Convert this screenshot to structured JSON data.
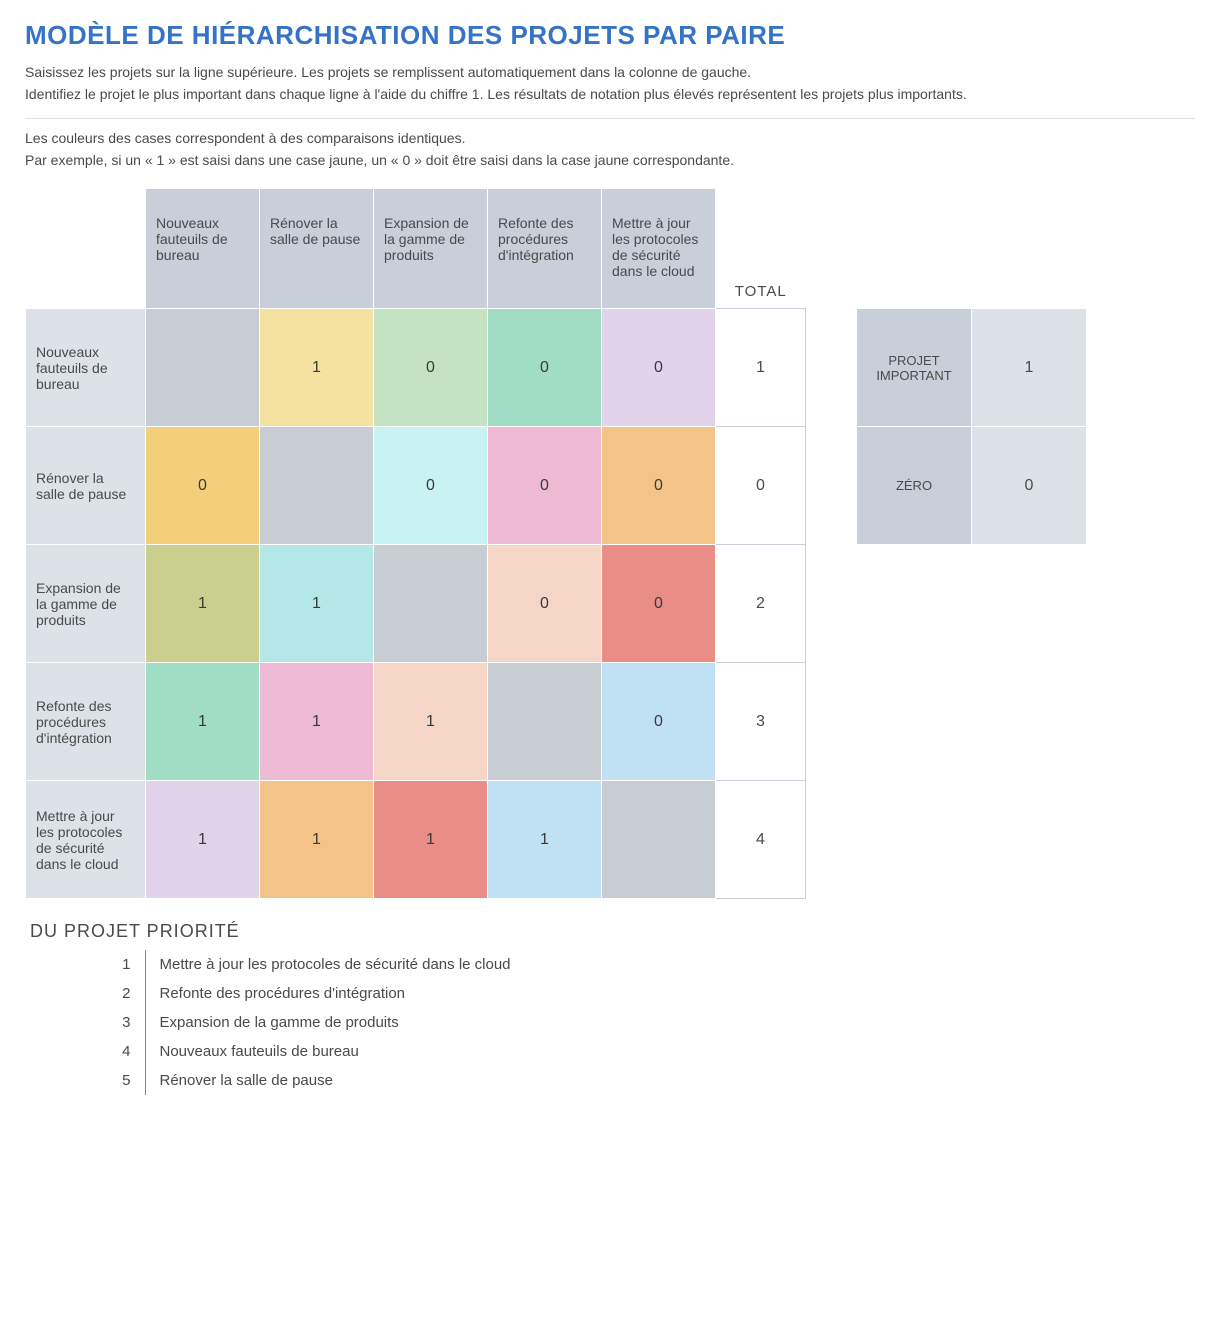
{
  "title": "MODÈLE DE HIÉRARCHISATION DES PROJETS PAR PAIRE",
  "intro": {
    "line1": "Saisissez les projets sur la ligne supérieure. Les projets se remplissent automatiquement dans la colonne de gauche.",
    "line2": "Identifiez le projet le plus important dans chaque ligne à l'aide du chiffre 1. Les résultats de notation plus élevés représentent les projets plus importants."
  },
  "legend": {
    "line1": "Les couleurs des cases correspondent à des comparaisons identiques.",
    "line2": "Par exemple, si un « 1 » est saisi dans une case jaune, un « 0 » doit être saisi dans la case jaune correspondante."
  },
  "projects": [
    "Nouveaux fauteuils de bureau",
    "Rénover la salle de pause",
    "Expansion de la gamme de produits",
    "Refonte des procédures d'intégration",
    "Mettre à jour les protocoles de sécurité dans le cloud"
  ],
  "total_label": "TOTAL",
  "matrix": [
    [
      null,
      "1",
      "0",
      "0",
      "0"
    ],
    [
      "0",
      null,
      "0",
      "0",
      "0"
    ],
    [
      "1",
      "1",
      null,
      "0",
      "0"
    ],
    [
      "1",
      "1",
      "1",
      null,
      "0"
    ],
    [
      "1",
      "1",
      "1",
      "1",
      null
    ]
  ],
  "cell_colors": [
    [
      "#c8ccd3",
      "#f6e2a0",
      "#c3e3c2",
      "#a1dcc4",
      "#e1d4ea"
    ],
    [
      "#f3cf7c",
      "#c8ccd3",
      "#c9f2f2",
      "#eeb9d2",
      "#f3c388"
    ],
    [
      "#cacf8e",
      "#b4e8e8",
      "#c8ccd3",
      "#f5d5c6",
      "#e88e87"
    ],
    [
      "#a1dcc4",
      "#eeb9d2",
      "#f5d5c6",
      "#c8ccd3",
      "#bfe1f3"
    ],
    [
      "#e1d4ea",
      "#f3c388",
      "#e88e87",
      "#bfe1f3",
      "#c8ccd3"
    ]
  ],
  "totals": [
    "1",
    "0",
    "2",
    "3",
    "4"
  ],
  "side": {
    "important_label": "PROJET IMPORTANT",
    "important_value": "1",
    "zero_label": "ZÉRO",
    "zero_value": "0"
  },
  "priority_title": "DU PROJET PRIORITÉ",
  "priority": [
    {
      "rank": "1",
      "name": "Mettre à jour les protocoles de sécurité dans le cloud"
    },
    {
      "rank": "2",
      "name": "Refonte des procédures d'intégration"
    },
    {
      "rank": "3",
      "name": "Expansion de la gamme de produits"
    },
    {
      "rank": "4",
      "name": "Nouveaux fauteuils de bureau"
    },
    {
      "rank": "5",
      "name": "Rénover la salle de pause"
    }
  ]
}
